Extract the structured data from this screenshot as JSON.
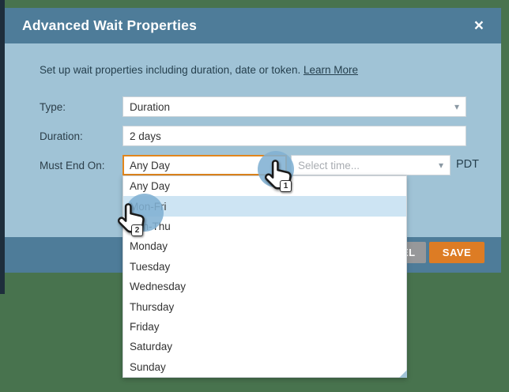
{
  "modal": {
    "title": "Advanced Wait Properties",
    "intro_text": "Set up wait properties including duration, date or token.",
    "intro_link": "Learn More",
    "fields": {
      "type_label": "Type:",
      "type_value": "Duration",
      "duration_label": "Duration:",
      "duration_value": "2 days",
      "must_end_on_label": "Must End On:",
      "must_end_on_value": "Any Day",
      "time_placeholder": "Select time...",
      "timezone": "PDT"
    },
    "footer": {
      "cancel_label": "CANCEL",
      "save_label": "SAVE"
    }
  },
  "dropdown": {
    "options": [
      "Any Day",
      "Mon-Fri",
      "Sun-Thu",
      "Monday",
      "Tuesday",
      "Wednesday",
      "Thursday",
      "Friday",
      "Saturday",
      "Sunday"
    ],
    "highlighted_option": "Mon-Fri",
    "highlighted_index": 1
  },
  "annotations": [
    {
      "step": "1"
    },
    {
      "step": "2"
    }
  ],
  "icons": {
    "close": "×",
    "chevron_down": "▾"
  },
  "colors": {
    "teal": "#4e7c99",
    "body_blue": "#a0c3d6",
    "bg_green": "#48734e",
    "navy": "#1e2e3c",
    "save_orange": "#dd7c24",
    "focus_orange": "#e2861c",
    "cancel_gray": "#97989a",
    "highlight_blue": "#cde4f3"
  }
}
